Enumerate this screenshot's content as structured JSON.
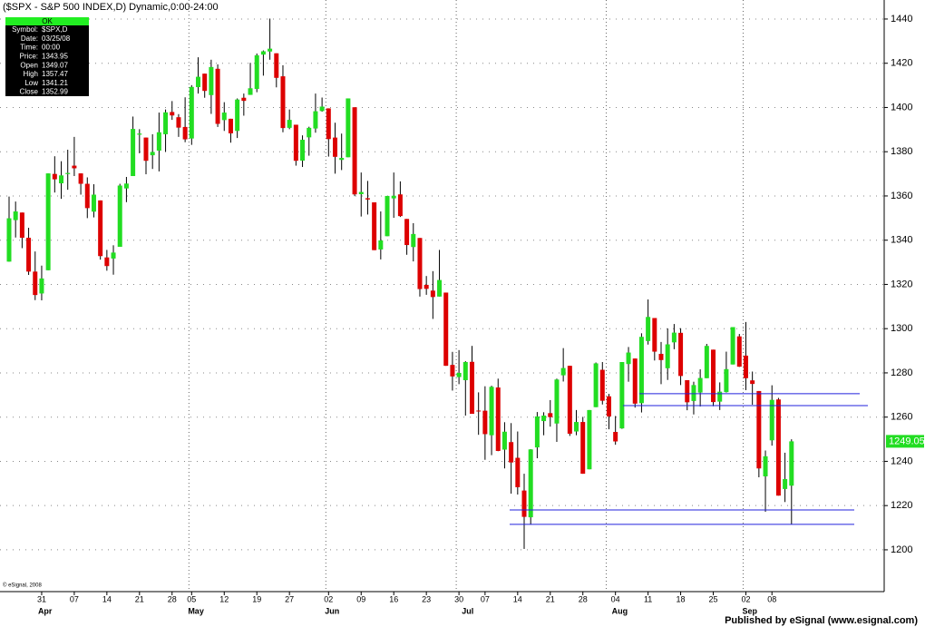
{
  "chart_data": {
    "type": "candlestick",
    "title": "($SPX - S&P 500 INDEX,D) Dynamic,0:00-24:00",
    "footer": "Published by eSignal (www.esignal.com)",
    "copyright": "© eSignal, 2008",
    "info_panel": {
      "status": "OK",
      "rows": [
        [
          "Symbol:",
          "$SPX,D"
        ],
        [
          "Date:",
          "03/25/08"
        ],
        [
          "Time:",
          "00:00"
        ],
        [
          "Price:",
          "1343.95"
        ],
        [
          "Open",
          "1349.07"
        ],
        [
          "High",
          "1357.47"
        ],
        [
          "Low",
          "1341.21"
        ],
        [
          "Close",
          "1352.99"
        ]
      ]
    },
    "categories": [
      null,
      null,
      null,
      null,
      null,
      "31",
      null,
      null,
      null,
      null,
      "07",
      null,
      null,
      null,
      null,
      "14",
      null,
      null,
      null,
      null,
      "21",
      null,
      null,
      null,
      null,
      "28",
      null,
      null,
      "05",
      null,
      null,
      null,
      null,
      "12",
      null,
      null,
      null,
      null,
      "19",
      null,
      null,
      null,
      null,
      "27",
      null,
      null,
      null,
      null,
      null,
      "02",
      null,
      null,
      null,
      null,
      "09",
      null,
      null,
      null,
      null,
      "16",
      null,
      null,
      null,
      null,
      "23",
      null,
      null,
      null,
      null,
      "30",
      null,
      null,
      null,
      "07",
      null,
      null,
      null,
      null,
      "14",
      null,
      null,
      null,
      null,
      "21",
      null,
      null,
      null,
      null,
      "28",
      null,
      null,
      null,
      null,
      "04",
      null,
      null,
      null,
      null,
      "11",
      null,
      null,
      null,
      null,
      "18",
      null,
      null,
      null,
      null,
      "25",
      null,
      null,
      null,
      null,
      "02",
      null,
      null,
      null,
      "08",
      null,
      null,
      null
    ],
    "months": [
      null,
      null,
      null,
      null,
      null,
      "Apr",
      null,
      null,
      null,
      null,
      null,
      null,
      null,
      null,
      null,
      null,
      null,
      null,
      null,
      null,
      null,
      null,
      null,
      null,
      null,
      null,
      null,
      null,
      "May",
      null,
      null,
      null,
      null,
      null,
      null,
      null,
      null,
      null,
      null,
      null,
      null,
      null,
      null,
      null,
      null,
      null,
      null,
      null,
      null,
      "Jun",
      null,
      null,
      null,
      null,
      null,
      null,
      null,
      null,
      null,
      null,
      null,
      null,
      null,
      null,
      null,
      null,
      null,
      null,
      null,
      null,
      "Jul",
      null,
      null,
      null,
      null,
      null,
      null,
      null,
      null,
      null,
      null,
      null,
      null,
      null,
      null,
      null,
      null,
      null,
      null,
      null,
      null,
      null,
      null,
      "Aug",
      null,
      null,
      null,
      null,
      null,
      null,
      null,
      null,
      null,
      null,
      null,
      null,
      null,
      null,
      null,
      null,
      null,
      null,
      null,
      "Sep",
      null,
      null,
      null,
      null,
      null,
      null,
      null
    ],
    "open": [
      1330.3,
      1349.07,
      1352.5,
      1341.1,
      1325.8,
      1315.9,
      1326.4,
      1369.96,
      1365.7,
      1369.9,
      1373.7,
      1370.2,
      1365.5,
      1352.9,
      1357.98,
      1332.2,
      1331.7,
      1337.0,
      1363.4,
      1369.0,
      1387.7,
      1386.4,
      1378.4,
      1380.5,
      1387.9,
      1397.96,
      1395.6,
      1391.2,
      1385.97,
      1409.2,
      1415.3,
      1405.6,
      1417.5,
      1394.3,
      1394.9,
      1389.4,
      1404.4,
      1405.7,
      1408.4,
      1423.9,
      1425.3,
      1424.5,
      1414.1,
      1390.8,
      1392.2,
      1375.97,
      1386.5,
      1390.5,
      1398.4,
      1399.6,
      1386.4,
      1376.3,
      1377.5,
      1400.1,
      1360.8,
      1358.98,
      1357.1,
      1335.8,
      1341.8,
      1358.9,
      1360.7,
      1349.6,
      1336.9,
      1341.0,
      1319.8,
      1317.2,
      1314.5,
      1316.3,
      1283.6,
      1278.1,
      1276.7,
      1285.0,
      1262.96,
      1262.9,
      1251.8,
      1273.4,
      1245.3,
      1248.7,
      1241.6,
      1226.8,
      1214.7,
      1246.3,
      1258.2,
      1261.8,
      1257.1,
      1278.9,
      1283.2,
      1253.5,
      1257.8,
      1236.4,
      1264.5,
      1281.4,
      1269.4,
      1253.3,
      1254.9,
      1283.99,
      1286.5,
      1266.3,
      1294.4,
      1304.8,
      1288.6,
      1282.1,
      1293.8,
      1298.1,
      1276.7,
      1267.3,
      1271.1,
      1277.6,
      1290.5,
      1267.0,
      1271.3,
      1283.8,
      1296.5,
      1287.8,
      1276.6,
      1271.8,
      1233.2,
      1249.5,
      1267.98,
      1227.5,
      1229.0
    ],
    "high": [
      1359.7,
      1357.47,
      1352.5,
      1345.6,
      1334.9,
      1328.5,
      1370.2,
      1377.95,
      1375.7,
      1380.9,
      1386.7,
      1370.2,
      1368.4,
      1365.3,
      1357.98,
      1335.6,
      1337.7,
      1365.5,
      1368.6,
      1395.9,
      1390.2,
      1386.4,
      1387.9,
      1397.7,
      1399.1,
      1402.9,
      1397.0,
      1404.6,
      1410.1,
      1422.7,
      1415.3,
      1421.6,
      1419.5,
      1402.4,
      1394.9,
      1404.1,
      1406.3,
      1420.2,
      1424.4,
      1425.8,
      1440.2,
      1424.5,
      1419.1,
      1399.1,
      1392.2,
      1387.4,
      1391.3,
      1406.3,
      1404.5,
      1399.6,
      1393.1,
      1388.2,
      1404.1,
      1400.1,
      1370.6,
      1366.8,
      1357.1,
      1353.0,
      1360.0,
      1370.6,
      1366.6,
      1349.6,
      1347.7,
      1341.0,
      1323.8,
      1326.0,
      1335.6,
      1316.3,
      1289.5,
      1290.3,
      1285.3,
      1292.2,
      1271.2,
      1273.95,
      1274.2,
      1277.4,
      1257.7,
      1257.3,
      1253.5,
      1234.4,
      1245.5,
      1262.3,
      1262.2,
      1267.7,
      1277.4,
      1291.2,
      1283.2,
      1263.2,
      1260.1,
      1263.2,
      1284.7,
      1284.9,
      1270.5,
      1260.5,
      1284.9,
      1291.7,
      1286.5,
      1297.9,
      1313.2,
      1304.8,
      1294.0,
      1300.1,
      1302.1,
      1300.2,
      1276.7,
      1276.0,
      1281.6,
      1293.1,
      1290.5,
      1275.7,
      1289.6,
      1300.7,
      1297.6,
      1303.0,
      1280.6,
      1271.8,
      1244.9,
      1274.4,
      1268.7,
      1243.9,
      1249.98
    ],
    "low": [
      1330.3,
      1341.21,
      1336.4,
      1324.3,
      1312.9,
      1312.8,
      1326.4,
      1361.55,
      1358.7,
      1362.8,
      1369.0,
      1360.6,
      1349.97,
      1350.3,
      1331.2,
      1326.2,
      1324.4,
      1337.0,
      1357.2,
      1369.0,
      1379.3,
      1369.8,
      1372.2,
      1371.1,
      1379.98,
      1394.4,
      1386.7,
      1384.3,
      1383.1,
      1406.3,
      1404.4,
      1397.1,
      1391.2,
      1389.4,
      1384.1,
      1386.2,
      1396.3,
      1405.7,
      1406.9,
      1414.4,
      1421.6,
      1409.1,
      1388.8,
      1390.2,
      1373.7,
      1373.1,
      1378.2,
      1388.6,
      1398.1,
      1377.8,
      1370.1,
      1371.7,
      1377.5,
      1359.9,
      1350.7,
      1351.6,
      1335.5,
      1331.3,
      1341.8,
      1350.1,
      1350.5,
      1333.4,
      1330.4,
      1314.5,
      1315.3,
      1304.4,
      1314.5,
      1283.2,
      1272.0,
      1274.9,
      1260.7,
      1261.5,
      1252.0,
      1240.7,
      1242.8,
      1244.6,
      1236.8,
      1225.4,
      1225.0,
      1200.4,
      1211.4,
      1241.4,
      1251.8,
      1255.7,
      1248.8,
      1276.1,
      1251.5,
      1251.8,
      1234.4,
      1236.4,
      1264.5,
      1265.7,
      1254.5,
      1247.5,
      1254.7,
      1276.0,
      1264.3,
      1262.1,
      1292.8,
      1285.6,
      1274.9,
      1276.8,
      1290.7,
      1274.5,
      1263.1,
      1261.2,
      1264.8,
      1277.6,
      1264.9,
      1263.2,
      1271.1,
      1283.8,
      1282.7,
      1272.2,
      1265.6,
      1232.8,
      1217.2,
      1247.1,
      1224.5,
      1221.6,
      1211.5
    ],
    "close": [
      1349.9,
      1352.99,
      1341.1,
      1325.8,
      1315.2,
      1322.7,
      1370.2,
      1367.53,
      1369.3,
      1370.4,
      1372.5,
      1365.5,
      1354.5,
      1360.6,
      1332.8,
      1328.3,
      1334.4,
      1364.7,
      1365.6,
      1390.3,
      1388.2,
      1375.9,
      1379.9,
      1388.8,
      1397.8,
      1396.4,
      1390.9,
      1385.6,
      1409.3,
      1413.9,
      1407.5,
      1418.3,
      1392.6,
      1397.7,
      1388.3,
      1403.6,
      1403.0,
      1408.7,
      1423.6,
      1425.4,
      1426.6,
      1413.4,
      1390.7,
      1394.4,
      1375.9,
      1385.4,
      1390.8,
      1398.3,
      1400.4,
      1385.7,
      1377.7,
      1377.2,
      1404.1,
      1360.7,
      1361.8,
      1358.4,
      1335.5,
      1339.9,
      1360.0,
      1360.1,
      1350.9,
      1337.8,
      1342.8,
      1317.9,
      1318.0,
      1314.3,
      1322.0,
      1283.2,
      1278.4,
      1280.0,
      1284.9,
      1261.5,
      1262.9,
      1252.3,
      1273.7,
      1244.7,
      1253.4,
      1239.5,
      1228.3,
      1214.9,
      1245.4,
      1260.3,
      1260.7,
      1260.0,
      1277.0,
      1282.2,
      1252.5,
      1257.8,
      1234.4,
      1263.2,
      1284.3,
      1267.4,
      1260.3,
      1249.0,
      1284.9,
      1289.2,
      1266.1,
      1296.3,
      1305.3,
      1289.6,
      1285.8,
      1292.9,
      1298.2,
      1278.6,
      1266.7,
      1274.5,
      1277.7,
      1292.2,
      1266.8,
      1271.5,
      1281.7,
      1300.7,
      1282.8,
      1277.6,
      1275.0,
      1236.8,
      1242.3,
      1267.8,
      1224.5,
      1232.0,
      1249.05
    ],
    "up_color": "#22dd22",
    "down_color": "#dd0000",
    "horizontal_lines": [
      1270.6,
      1265.2,
      1218.0,
      1211.5
    ],
    "line_color": "#2222dd",
    "ylim": [
      1181.1,
      1448.6
    ],
    "yticks": [
      1200,
      1220,
      1240,
      1260,
      1280,
      1300,
      1320,
      1340,
      1360,
      1380,
      1400,
      1420,
      1440
    ],
    "grid": true
  }
}
